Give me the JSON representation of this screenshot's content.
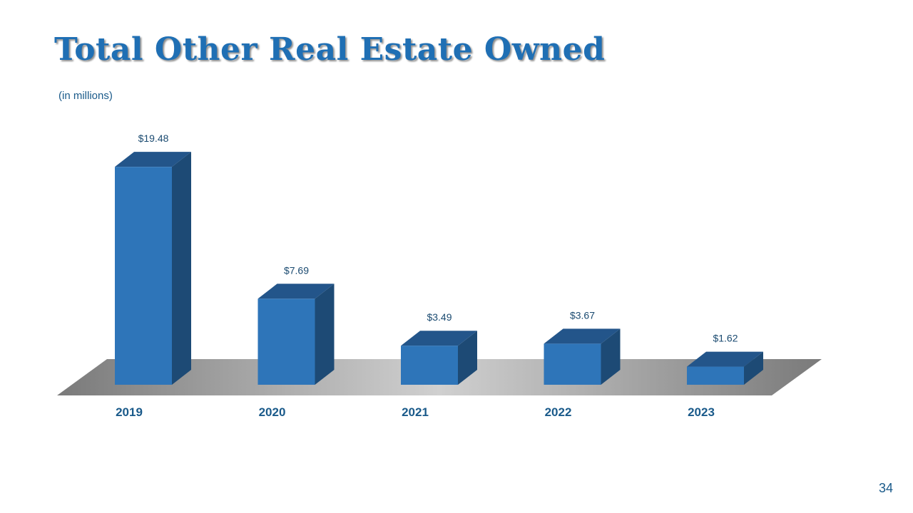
{
  "title": "Total Other Real Estate Owned",
  "subtitle": "(in millions)",
  "page_number": "34",
  "colors": {
    "title": "#1f6fb4",
    "bar_front": "#2e75b9",
    "bar_top": "#23558a",
    "bar_side": "#1d4a75",
    "floor_light": "#d0d0d0",
    "floor_dark": "#7a7a7a"
  },
  "chart_data": {
    "type": "bar",
    "categories": [
      "2019",
      "2020",
      "2021",
      "2022",
      "2023"
    ],
    "values": [
      19.48,
      7.69,
      3.49,
      3.67,
      1.62
    ],
    "data_labels": [
      "$19.48",
      "$7.69",
      "$3.49",
      "$3.67",
      "$1.62"
    ],
    "title": "Total Other Real Estate Owned",
    "subtitle": "(in millions)",
    "style": "3d-column",
    "grid": false,
    "legend": "none"
  }
}
